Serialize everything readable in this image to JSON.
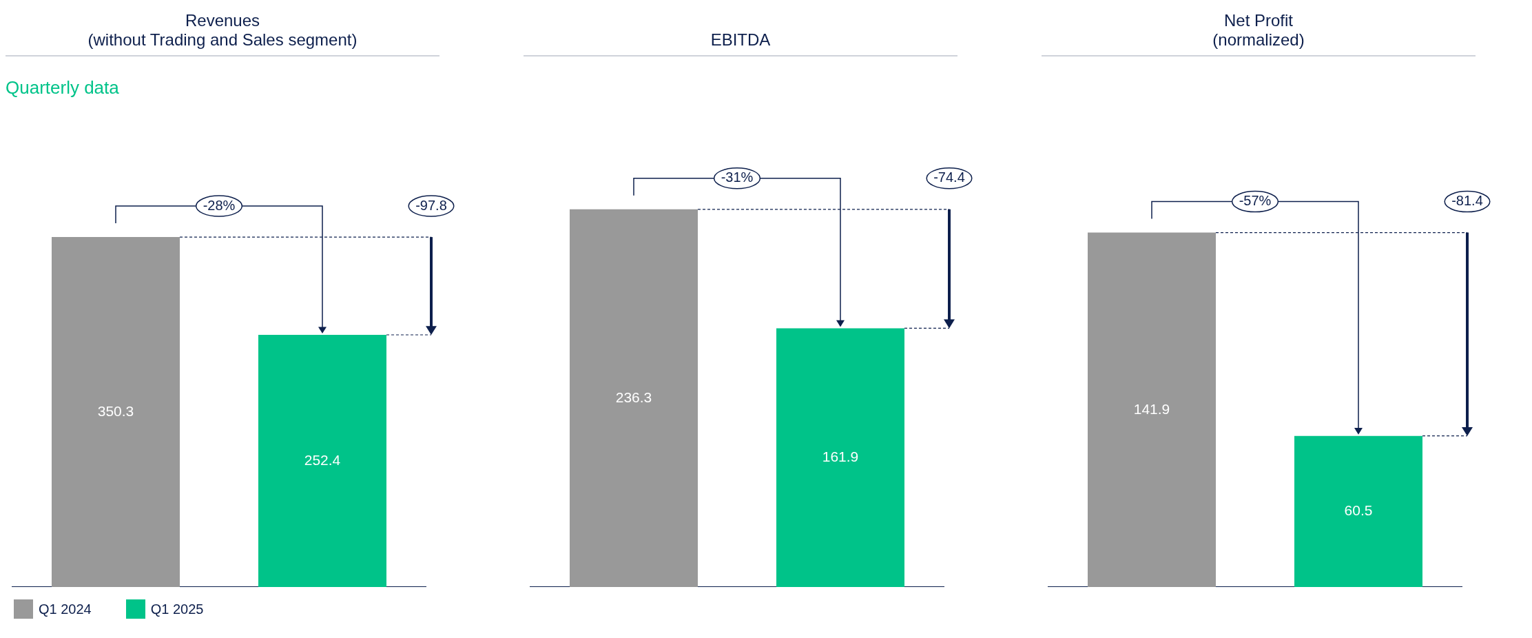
{
  "chart_data": [
    {
      "type": "bar",
      "title": "Revenues\n(without Trading and Sales segment)",
      "subtitle": "Quarterly data",
      "categories": [
        null
      ],
      "series": [
        {
          "name": "Q1 2024",
          "color": "#999999",
          "values": [
            350.3
          ]
        },
        {
          "name": "Q1 2025",
          "color": "#00c389",
          "values": [
            252.4
          ]
        }
      ],
      "data_labels": true,
      "annotations": [
        "-28%",
        "-97.8"
      ],
      "legend": "bottom left",
      "tick_labels": false,
      "grid": false
    },
    {
      "type": "bar",
      "title": "EBITDA",
      "categories": [
        null
      ],
      "series": [
        {
          "color": "#999999",
          "values": [
            236.3
          ]
        },
        {
          "color": "#00c389",
          "values": [
            161.9
          ]
        }
      ],
      "data_labels": true,
      "annotations": [
        "-31%",
        "-74.4"
      ],
      "tick_labels": false,
      "grid": false
    },
    {
      "type": "bar",
      "title": "Net Profit\n(normalized)",
      "categories": [
        null
      ],
      "series": [
        {
          "color": "#999999",
          "values": [
            141.9
          ]
        },
        {
          "color": "#00c389",
          "values": [
            60.5
          ]
        }
      ],
      "data_labels": true,
      "annotations": [
        "-57%",
        "-81.4"
      ],
      "tick_labels": false,
      "grid": false
    }
  ]
}
